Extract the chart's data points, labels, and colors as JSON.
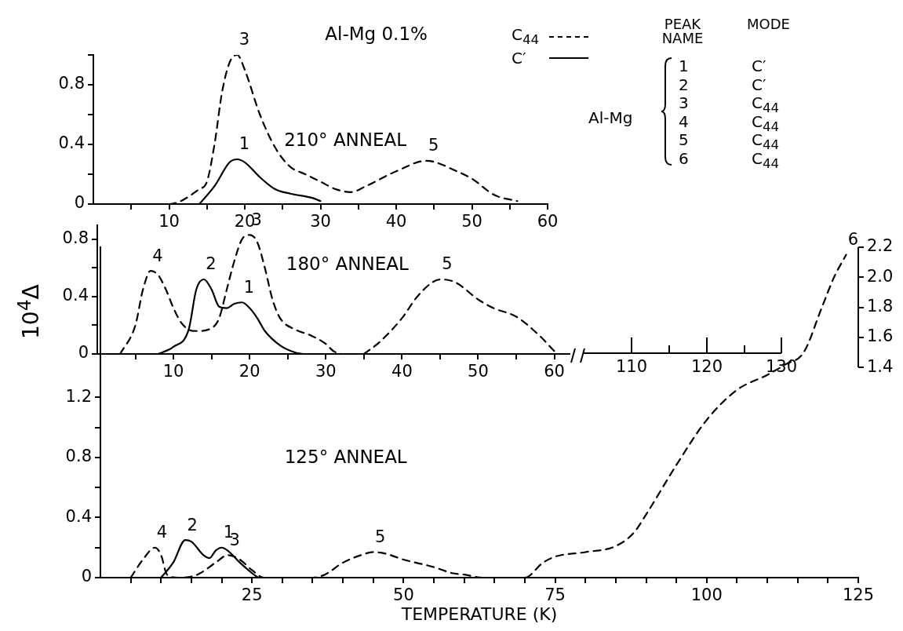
{
  "chart_data": [
    {
      "type": "line",
      "title": "Al-Mg 0.1%",
      "subtitle": "210° ANNEAL",
      "legend": "top right",
      "marker": "none",
      "xlim": [
        0,
        60
      ],
      "xticks": [
        {
          "value": 5,
          "label": null
        },
        10,
        {
          "value": 15,
          "label": null
        },
        20,
        {
          "value": 25,
          "label": null
        },
        30,
        {
          "value": 35,
          "label": null
        },
        40,
        {
          "value": 45,
          "label": null
        },
        50,
        {
          "value": 55,
          "label": null
        },
        60
      ],
      "ylim": [
        0,
        1.0
      ],
      "yticks": [
        0,
        {
          "value": 0.2,
          "label": null
        },
        0.4,
        {
          "value": 0.6,
          "label": null
        },
        0.8,
        {
          "value": 1.0,
          "label": null
        }
      ],
      "series": [
        {
          "name": "C$_{44}$",
          "color": "#000000",
          "line_style": "dashed",
          "x": [
            5,
            10,
            14,
            15,
            16,
            17,
            18,
            19,
            20,
            22,
            24,
            26,
            28,
            30,
            32,
            34,
            36,
            40,
            44,
            48,
            50,
            53,
            56
          ],
          "values": [
            0,
            0,
            0.1,
            0.15,
            0.4,
            0.75,
            0.95,
            1.0,
            0.9,
            0.6,
            0.38,
            0.25,
            0.2,
            0.15,
            0.1,
            0.08,
            0.12,
            0.22,
            0.29,
            0.22,
            0.17,
            0.06,
            0.02
          ]
        },
        {
          "name": "C′",
          "color": "#000000",
          "line_style": "solid",
          "x": [
            14,
            16,
            18,
            19,
            20,
            22,
            24,
            26,
            29,
            30
          ],
          "values": [
            0,
            0.12,
            0.28,
            0.3,
            0.28,
            0.18,
            0.1,
            0.07,
            0.04,
            0.02
          ]
        }
      ],
      "annotations": [
        {
          "text": "3",
          "x": 19,
          "y": 1.0
        },
        {
          "text": "1",
          "x": 19,
          "y": 0.3
        },
        {
          "text": "5",
          "x": 44,
          "y": 0.29
        },
        "PEAK NAME",
        "MODE",
        "Al-Mg",
        "1",
        "C′",
        "2",
        "C′",
        "3",
        "C$_{44}$",
        "4",
        "C$_{44}$",
        "5",
        "C$_{44}$",
        "6",
        "C$_{44}$"
      ]
    },
    {
      "type": "line",
      "subtitle": "180° ANNEAL",
      "ylabel": "10$^{4}$Δ",
      "marker": "none",
      "xlim": [
        0,
        62
      ],
      "xticks": [
        {
          "value": 5,
          "label": null
        },
        10,
        {
          "value": 15,
          "label": null
        },
        20,
        {
          "value": 25,
          "label": null
        },
        30,
        {
          "value": 35,
          "label": null
        },
        40,
        {
          "value": 45,
          "label": null
        },
        50,
        {
          "value": 55,
          "label": null
        },
        60
      ],
      "ylim": [
        0,
        0.9
      ],
      "yticks": [
        0,
        {
          "value": 0.2,
          "label": null
        },
        0.4,
        {
          "value": 0.6,
          "label": null
        },
        0.8
      ],
      "series": [
        {
          "color": "#000000",
          "line_style": "dashed",
          "x": [
            3,
            5,
            6,
            7,
            8,
            9,
            10,
            11,
            12,
            13,
            15,
            16,
            17,
            18,
            19,
            20,
            21,
            22,
            23,
            24,
            26,
            28,
            30,
            31,
            32,
            33,
            35,
            37,
            40,
            42,
            44,
            45,
            47,
            50,
            52,
            55,
            58,
            60
          ],
          "values": [
            0,
            0.2,
            0.45,
            0.58,
            0.55,
            0.45,
            0.32,
            0.22,
            0.17,
            0.16,
            0.18,
            0.25,
            0.45,
            0.65,
            0.8,
            0.83,
            0.78,
            0.6,
            0.38,
            0.25,
            0.17,
            0.13,
            0.07,
            0.02,
            0,
            null,
            0,
            0.08,
            0.25,
            0.4,
            0.5,
            0.52,
            0.5,
            0.38,
            0.32,
            0.26,
            0.13,
            0.02
          ]
        },
        {
          "color": "#000000",
          "line_style": "solid",
          "x": [
            8,
            10,
            12,
            13,
            14,
            15,
            16,
            17,
            18,
            19,
            20,
            21,
            22,
            24,
            26,
            27
          ],
          "values": [
            0,
            0.05,
            0.17,
            0.45,
            0.52,
            0.45,
            0.33,
            0.32,
            0.35,
            0.36,
            0.32,
            0.25,
            0.16,
            0.06,
            0.01,
            0
          ]
        }
      ],
      "annotations": [
        {
          "text": "4",
          "x": 7,
          "y": 0.58
        },
        {
          "text": "2",
          "x": 14,
          "y": 0.52
        },
        {
          "text": "1",
          "x": 19,
          "y": 0.36
        },
        {
          "text": "3",
          "x": 20,
          "y": 0.83
        },
        {
          "text": "5",
          "x": 45,
          "y": 0.52
        }
      ]
    },
    {
      "type": "other",
      "annotations": [
        "110",
        "120",
        "130"
      ]
    },
    {
      "type": "line",
      "subtitle": "125° ANNEAL",
      "xlabel": "TEMPERATURE (K)",
      "marker": "none",
      "xlim": [
        0,
        125
      ],
      "xticks": [
        {
          "value": 5,
          "label": null
        },
        {
          "value": 10,
          "label": null
        },
        {
          "value": 15,
          "label": null
        },
        {
          "value": 20,
          "label": null
        },
        25,
        {
          "value": 30,
          "label": null
        },
        {
          "value": 35,
          "label": null
        },
        {
          "value": 40,
          "label": null
        },
        {
          "value": 45,
          "label": null
        },
        50,
        {
          "value": 55,
          "label": null
        },
        {
          "value": 60,
          "label": null
        },
        {
          "value": 65,
          "label": null
        },
        {
          "value": 70,
          "label": null
        },
        75,
        {
          "value": 80,
          "label": null
        },
        {
          "value": 85,
          "label": null
        },
        {
          "value": 90,
          "label": null
        },
        {
          "value": 95,
          "label": null
        },
        100,
        {
          "value": 105,
          "label": null
        },
        {
          "value": 110,
          "label": null
        },
        {
          "value": 115,
          "label": null
        },
        {
          "value": 120,
          "label": null
        },
        125
      ],
      "ylim": [
        0,
        2.2
      ],
      "yticks": [
        0,
        {
          "value": 0.2,
          "label": null
        },
        0.4,
        {
          "value": 0.6,
          "label": null
        },
        0.8,
        {
          "value": 1.0,
          "label": null
        },
        1.2
      ],
      "y2lim": [
        0,
        2.2
      ],
      "y2ticks": [
        1.4,
        1.6,
        1.8,
        {
          "value": 2,
          "label": "2.0"
        },
        2.2
      ],
      "series": [
        {
          "color": "#000000",
          "line_style": "dashed",
          "x": [
            5,
            7,
            9,
            10,
            11,
            13,
            16,
            19,
            21,
            23,
            25,
            27,
            30,
            35,
            37,
            40,
            43,
            45,
            47,
            50,
            55,
            58,
            60,
            63,
            70,
            73,
            75,
            80,
            85,
            88,
            90,
            95,
            100,
            105,
            110,
            113,
            116,
            119,
            121,
            123
          ],
          "values": [
            0,
            0.12,
            0.2,
            0.15,
            0.02,
            0,
            0.02,
            0.1,
            0.15,
            0.12,
            0.05,
            0,
            0,
            0,
            0.02,
            0.1,
            0.15,
            0.17,
            0.16,
            0.12,
            0.07,
            0.03,
            0.02,
            0,
            0,
            0.1,
            0.14,
            0.17,
            0.21,
            0.3,
            0.42,
            0.75,
            1.05,
            1.25,
            1.35,
            1.42,
            1.5,
            1.8,
            2.0,
            2.15
          ]
        },
        {
          "color": "#000000",
          "line_style": "solid",
          "x": [
            10,
            12,
            14,
            15,
            17,
            18,
            19,
            20,
            21,
            23,
            25,
            26
          ],
          "values": [
            0,
            0.1,
            0.25,
            0.24,
            0.15,
            0.13,
            0.18,
            0.2,
            0.18,
            0.1,
            0.03,
            0
          ]
        }
      ],
      "annotations": [
        {
          "text": "4",
          "x": 9,
          "y": 0.2
        },
        {
          "text": "2",
          "x": 14,
          "y": 0.25
        },
        {
          "text": "1",
          "x": 20,
          "y": 0.2
        },
        {
          "text": "3",
          "x": 21,
          "y": 0.15
        },
        {
          "text": "5",
          "x": 45,
          "y": 0.17
        },
        {
          "text": "6",
          "x": 123,
          "y": 2.15
        }
      ]
    }
  ]
}
